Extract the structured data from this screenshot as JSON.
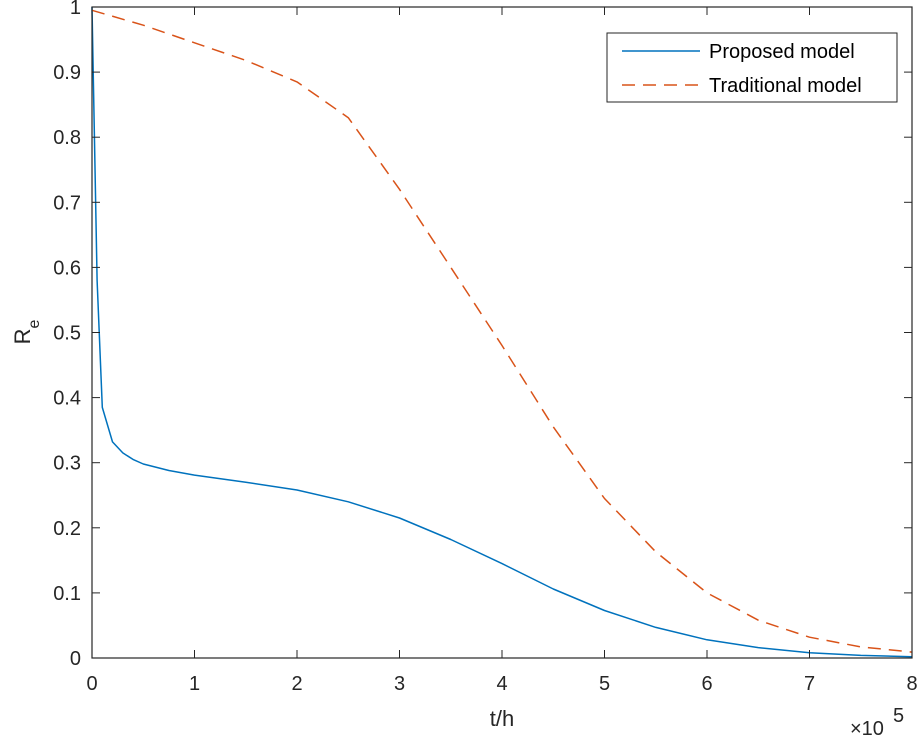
{
  "chart_data": {
    "type": "line",
    "title": "",
    "xlabel": "t/h",
    "ylabel_main": "R",
    "ylabel_sub": "e",
    "x_multiplier_base": "×10",
    "x_multiplier_exp": "5",
    "xlim": [
      0,
      8
    ],
    "ylim": [
      0,
      1
    ],
    "xticks": [
      0,
      1,
      2,
      3,
      4,
      5,
      6,
      7,
      8
    ],
    "yticks": [
      0,
      0.1,
      0.2,
      0.3,
      0.4,
      0.5,
      0.6,
      0.7,
      0.8,
      0.9,
      1
    ],
    "grid": false,
    "legend_position": "top-right",
    "series": [
      {
        "name": "Proposed model",
        "color": "#0072BD",
        "style": "solid",
        "x": [
          0,
          0.05,
          0.1,
          0.2,
          0.3,
          0.4,
          0.5,
          0.75,
          1,
          1.5,
          2,
          2.5,
          3,
          3.5,
          4,
          4.5,
          5,
          5.5,
          6,
          6.5,
          7,
          7.5,
          8
        ],
        "y": [
          1.0,
          0.58,
          0.385,
          0.332,
          0.315,
          0.305,
          0.298,
          0.288,
          0.281,
          0.27,
          0.258,
          0.24,
          0.215,
          0.182,
          0.145,
          0.106,
          0.073,
          0.047,
          0.028,
          0.016,
          0.008,
          0.004,
          0.002
        ]
      },
      {
        "name": "Traditional model",
        "color": "#D95319",
        "style": "dashed",
        "x": [
          0,
          0.5,
          1,
          1.5,
          2,
          2.5,
          3,
          3.5,
          4,
          4.5,
          5,
          5.5,
          6,
          6.5,
          7,
          7.5,
          8
        ],
        "y": [
          0.995,
          0.972,
          0.945,
          0.918,
          0.885,
          0.83,
          0.72,
          0.6,
          0.48,
          0.355,
          0.245,
          0.163,
          0.1,
          0.058,
          0.032,
          0.017,
          0.009
        ]
      }
    ]
  }
}
